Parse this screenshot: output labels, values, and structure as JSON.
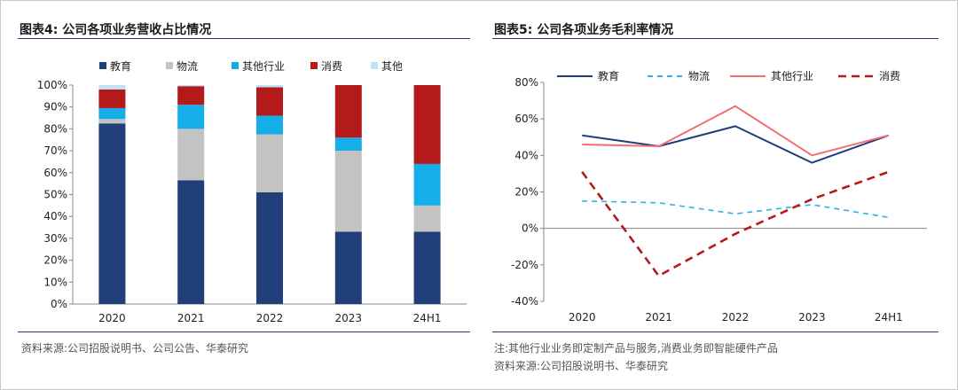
{
  "left_panel": {
    "title": "图表4:  公司各项业务营收占比情况",
    "source": "资料来源:公司招股说明书、公司公告、华泰研究"
  },
  "right_panel": {
    "title": "图表5:  公司各项业务毛利率情况",
    "note": "注:其他行业业务即定制产品与服务,消费业务即智能硬件产品",
    "source": "资料来源:公司招股说明书、华泰研究"
  },
  "chart_data": [
    {
      "type": "bar",
      "stacked": true,
      "categories": [
        "2020",
        "2021",
        "2022",
        "2023",
        "24H1"
      ],
      "series": [
        {
          "name": "教育",
          "color": "#1f3e7a",
          "values": [
            82.5,
            56.5,
            51,
            33,
            33
          ]
        },
        {
          "name": "物流",
          "color": "#c3c3c3",
          "values": [
            2,
            23.5,
            26.5,
            37,
            12
          ]
        },
        {
          "name": "其他行业",
          "color": "#16aee8",
          "values": [
            5,
            11,
            8.5,
            6,
            19
          ]
        },
        {
          "name": "消费",
          "color": "#b51a1a",
          "values": [
            8.5,
            8.5,
            13,
            24,
            36
          ]
        },
        {
          "name": "其他",
          "color": "#bfe3f5",
          "values": [
            2,
            0.5,
            1,
            0,
            0
          ]
        }
      ],
      "ylim": [
        0,
        100
      ],
      "yticks": [
        "0%",
        "10%",
        "20%",
        "30%",
        "40%",
        "50%",
        "60%",
        "70%",
        "80%",
        "90%",
        "100%"
      ],
      "legend": "top",
      "grid": false
    },
    {
      "type": "line",
      "categories": [
        "2020",
        "2021",
        "2022",
        "2023",
        "24H1"
      ],
      "series": [
        {
          "name": "教育",
          "color": "#1f3e7a",
          "dash": "solid",
          "values": [
            51,
            45,
            56,
            36,
            51
          ]
        },
        {
          "name": "物流",
          "color": "#2bb4e8",
          "dash": "dashed",
          "values": [
            15,
            14,
            8,
            13,
            6
          ]
        },
        {
          "name": "其他行业",
          "color": "#f07070",
          "dash": "solid",
          "values": [
            46,
            45,
            67,
            40,
            51
          ]
        },
        {
          "name": "消费",
          "color": "#b51a1a",
          "dash": "dashed",
          "values": [
            31,
            -26,
            -3,
            16,
            31
          ]
        }
      ],
      "ylim": [
        -40,
        80
      ],
      "yticks": [
        "-40%",
        "-20%",
        "0%",
        "20%",
        "40%",
        "60%",
        "80%"
      ],
      "legend": "top",
      "grid": false
    }
  ]
}
